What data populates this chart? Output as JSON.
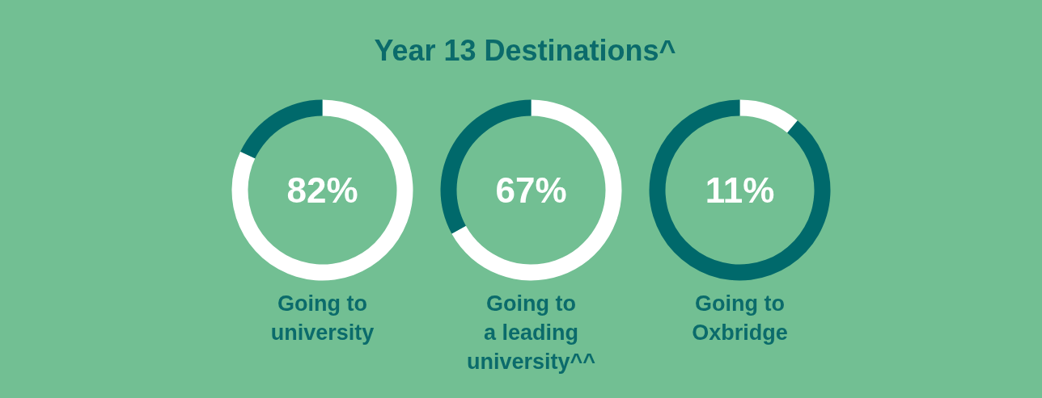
{
  "chart_data": [
    {
      "type": "donut",
      "title": "Year 13 Destinations^",
      "categories": [
        null,
        null
      ],
      "values": [
        82,
        18
      ],
      "colors": [
        "#ffffff",
        "#00696b"
      ],
      "annotations": [
        "82%"
      ],
      "xlabel": "Going to\nuniversity"
    },
    {
      "type": "donut",
      "categories": [
        null,
        null
      ],
      "values": [
        67,
        33
      ],
      "colors": [
        "#ffffff",
        "#00696b"
      ],
      "annotations": [
        "67%"
      ],
      "xlabel": "Going to\na leading\nuniversity^^"
    },
    {
      "type": "donut",
      "categories": [
        null,
        null
      ],
      "values": [
        11,
        89
      ],
      "colors": [
        "#ffffff",
        "#00696b"
      ],
      "annotations": [
        "11%"
      ],
      "xlabel": "Going to\nOxbridge"
    }
  ]
}
